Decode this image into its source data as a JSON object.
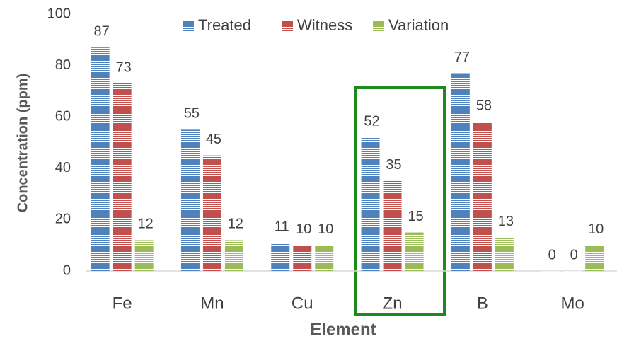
{
  "chart_data": {
    "type": "bar",
    "y_label": "Concentration (ppm)",
    "x_label": "Element",
    "categories": [
      "Fe",
      "Mn",
      "Cu",
      "Zn",
      "B",
      "Mo"
    ],
    "series": [
      {
        "name": "Treated",
        "color": "#4f81bd",
        "values": [
          87,
          55,
          11,
          52,
          77,
          0
        ]
      },
      {
        "name": "Witness",
        "color": "#c0504d",
        "values": [
          73,
          45,
          10,
          35,
          58,
          0
        ]
      },
      {
        "name": "Variation",
        "color": "#9bbb59",
        "values": [
          12,
          12,
          10,
          15,
          13,
          10
        ]
      }
    ],
    "ylim": [
      0,
      100
    ],
    "yticks": [
      0,
      20,
      40,
      60,
      80,
      100
    ],
    "grid": false,
    "legend": "top"
  }
}
